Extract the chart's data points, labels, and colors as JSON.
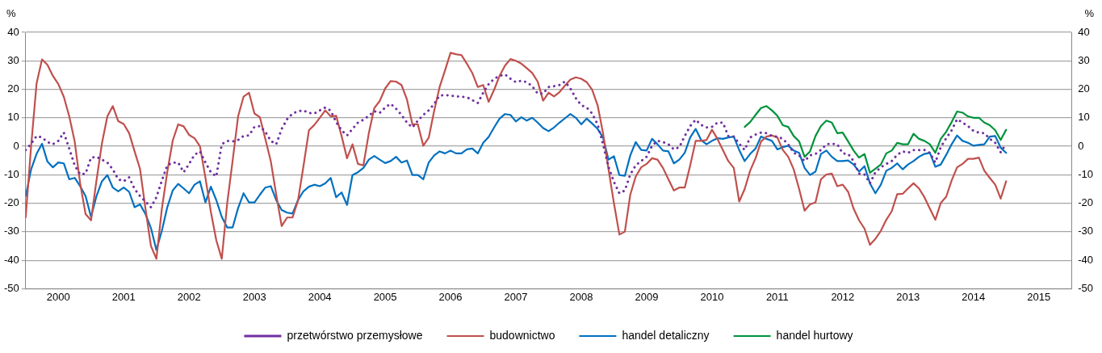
{
  "chart_data": {
    "type": "line",
    "ylabel": "%",
    "y2label": "%",
    "legend": "bottom",
    "grid": "y",
    "marker": "none",
    "x": [
      "2000-01",
      "2000-02",
      "2000-03",
      "2000-04",
      "2000-05",
      "2000-06",
      "2000-07",
      "2000-08",
      "2000-09",
      "2000-10",
      "2000-11",
      "2000-12",
      "2001-01",
      "2001-02",
      "2001-03",
      "2001-04",
      "2001-05",
      "2001-06",
      "2001-07",
      "2001-08",
      "2001-09",
      "2001-10",
      "2001-11",
      "2001-12",
      "2002-01",
      "2002-02",
      "2002-03",
      "2002-04",
      "2002-05",
      "2002-06",
      "2002-07",
      "2002-08",
      "2002-09",
      "2002-10",
      "2002-11",
      "2002-12",
      "2003-01",
      "2003-02",
      "2003-03",
      "2003-04",
      "2003-05",
      "2003-06",
      "2003-07",
      "2003-08",
      "2003-09",
      "2003-10",
      "2003-11",
      "2003-12",
      "2004-01",
      "2004-02",
      "2004-03",
      "2004-04",
      "2004-05",
      "2004-06",
      "2004-07",
      "2004-08",
      "2004-09",
      "2004-10",
      "2004-11",
      "2004-12",
      "2005-01",
      "2005-02",
      "2005-03",
      "2005-04",
      "2005-05",
      "2005-06",
      "2005-07",
      "2005-08",
      "2005-09",
      "2005-10",
      "2005-11",
      "2005-12",
      "2006-01",
      "2006-02",
      "2006-03",
      "2006-04",
      "2006-05",
      "2006-06",
      "2006-07",
      "2006-08",
      "2006-09",
      "2006-10",
      "2006-11",
      "2006-12",
      "2007-01",
      "2007-02",
      "2007-03",
      "2007-04",
      "2007-05",
      "2007-06",
      "2007-07",
      "2007-08",
      "2007-09",
      "2007-10",
      "2007-11",
      "2007-12",
      "2008-01",
      "2008-02",
      "2008-03",
      "2008-04",
      "2008-05",
      "2008-06",
      "2008-07",
      "2008-08",
      "2008-09",
      "2008-10",
      "2008-11",
      "2008-12",
      "2009-01",
      "2009-02",
      "2009-03",
      "2009-04",
      "2009-05",
      "2009-06",
      "2009-07",
      "2009-08",
      "2009-09",
      "2009-10",
      "2009-11",
      "2009-12",
      "2010-01",
      "2010-02",
      "2010-03",
      "2010-04",
      "2010-05",
      "2010-06",
      "2010-07",
      "2010-08",
      "2010-09",
      "2010-10",
      "2010-11",
      "2010-12",
      "2011-01",
      "2011-02",
      "2011-03",
      "2011-04",
      "2011-05",
      "2011-06",
      "2011-07",
      "2011-08",
      "2011-09",
      "2011-10",
      "2011-11",
      "2011-12",
      "2012-01",
      "2012-02",
      "2012-03",
      "2012-04",
      "2012-05",
      "2012-06",
      "2012-07",
      "2012-08",
      "2012-09",
      "2012-10",
      "2012-11",
      "2012-12",
      "2013-01",
      "2013-02",
      "2013-03",
      "2013-04",
      "2013-05",
      "2013-06",
      "2013-07",
      "2013-08",
      "2013-09",
      "2013-10",
      "2013-11",
      "2013-12",
      "2014-01",
      "2014-02",
      "2014-03",
      "2014-04",
      "2014-05",
      "2014-06",
      "2014-07",
      "2014-08",
      "2014-09",
      "2014-10",
      "2014-11",
      "2014-12",
      "2015-01"
    ],
    "xlim": [
      "2000-01",
      "2016-01"
    ],
    "xticks": [
      {
        "value": "2000-07",
        "label": "2000"
      },
      {
        "value": "2001-07",
        "label": "2001"
      },
      {
        "value": "2002-07",
        "label": "2002"
      },
      {
        "value": "2003-07",
        "label": "2003"
      },
      {
        "value": "2004-07",
        "label": "2004"
      },
      {
        "value": "2005-07",
        "label": "2005"
      },
      {
        "value": "2006-07",
        "label": "2006"
      },
      {
        "value": "2007-07",
        "label": "2007"
      },
      {
        "value": "2008-07",
        "label": "2008"
      },
      {
        "value": "2009-07",
        "label": "2009"
      },
      {
        "value": "2010-07",
        "label": "2010"
      },
      {
        "value": "2011-07",
        "label": "2011"
      },
      {
        "value": "2012-07",
        "label": "2012"
      },
      {
        "value": "2013-07",
        "label": "2013"
      },
      {
        "value": "2014-07",
        "label": "2014"
      },
      {
        "value": "2015-07",
        "label": "2015"
      }
    ],
    "ylim": [
      -50,
      40
    ],
    "yticks": [
      -50,
      -40,
      -30,
      -20,
      -10,
      0,
      10,
      20,
      30,
      40
    ],
    "y2lim": [
      -50,
      40
    ],
    "y2ticks": [
      -50,
      -40,
      -30,
      -20,
      -10,
      0,
      10,
      20,
      30,
      40
    ],
    "series": [
      {
        "name": "przetwórstwo przemysłowe",
        "color": "#7030a0",
        "line_style": "dotted",
        "values": [
          -1.3,
          0.9,
          3.6,
          3.1,
          1.5,
          0.7,
          1.9,
          4.8,
          -0.8,
          -6.7,
          -9.9,
          -9.6,
          -4,
          -3.7,
          -4.7,
          -5.7,
          -8.1,
          -11.6,
          -12.3,
          -10.9,
          -15,
          -17.5,
          -19.4,
          -21.4,
          -17.9,
          -12.1,
          -6.7,
          -5.7,
          -5.7,
          -9.1,
          -6.2,
          -3,
          -1.8,
          -5.7,
          -9.1,
          -10.6,
          0.7,
          1.9,
          1.7,
          2.2,
          3.6,
          3.8,
          6.8,
          7.1,
          5.1,
          1.9,
          0.7,
          6.1,
          9.5,
          11.5,
          12.3,
          12.6,
          11.7,
          11.5,
          12.6,
          13.6,
          12.5,
          8.5,
          5.6,
          3.8,
          6.1,
          8.3,
          9.3,
          10.7,
          12.3,
          11.7,
          13.6,
          14.9,
          13.2,
          11,
          8.3,
          6.6,
          9,
          11,
          12.6,
          14.9,
          17.8,
          18,
          17.8,
          17.5,
          17.4,
          17.2,
          16.2,
          15.2,
          18.8,
          21.8,
          23.7,
          24.7,
          25.2,
          23.7,
          22.5,
          23,
          22.5,
          21.1,
          18.5,
          18.5,
          20.8,
          21.1,
          21.5,
          22.7,
          20.3,
          16.9,
          14.4,
          13.6,
          11.5,
          7.7,
          0.7,
          -7.2,
          -12.5,
          -16.5,
          -15.5,
          -9.9,
          -6.7,
          -5.2,
          -3.7,
          0.2,
          1.9,
          1.5,
          0.7,
          -1.1,
          -0.3,
          3.6,
          7.1,
          9.3,
          7.5,
          6.6,
          6.8,
          8.3,
          8.3,
          3.6,
          3.4,
          0.9,
          -1.3,
          3.1,
          4.1,
          4.8,
          4.6,
          3.6,
          3.4,
          2.6,
          0.7,
          -2.3,
          -3.2,
          -5.2,
          -3.2,
          -2.7,
          -1.3,
          0.7,
          0.9,
          0.7,
          -2.5,
          -2.7,
          -5.2,
          -9.6,
          -9.9,
          -13,
          -9.1,
          -7.4,
          -6.2,
          -5.2,
          -3,
          -1.8,
          -2.3,
          -1.3,
          -1.3,
          -1.3,
          -2.3,
          -5.7,
          -0.3,
          2.8,
          5.6,
          9.5,
          8.3,
          7.1,
          5.4,
          4.8,
          4.6,
          2.6,
          1.2,
          -2.1,
          0.9
        ]
      },
      {
        "name": "budownictwo",
        "color": "#c0504d",
        "values": [
          -25,
          0,
          22,
          30.5,
          28.6,
          24.7,
          21.8,
          17.4,
          10.5,
          1.7,
          -13,
          -23.8,
          -26,
          -12,
          1,
          10.5,
          14.1,
          8.8,
          7.8,
          4.6,
          -1.8,
          -8,
          -22,
          -35,
          -39.5,
          -22,
          -9,
          2,
          7.7,
          7,
          4,
          2.8,
          0,
          -11,
          -23,
          -33,
          -39.5,
          -20,
          -5,
          10.5,
          17.4,
          18.8,
          11.5,
          10.2,
          2.6,
          -5.2,
          -17,
          -28,
          -25,
          -25,
          -19,
          -7,
          5.6,
          7.5,
          10,
          12.6,
          10.5,
          10.7,
          3.6,
          -4.2,
          0.7,
          -6.2,
          -6.7,
          4.6,
          13.4,
          15.9,
          20.3,
          22.9,
          22.7,
          21.5,
          16.4,
          7.7,
          7.7,
          0.2,
          3,
          12.5,
          20.8,
          26.7,
          32.8,
          32.3,
          32,
          29,
          25.7,
          20.8,
          21.5,
          15.6,
          19.8,
          24.7,
          28.3,
          30.6,
          30,
          29,
          27.4,
          25.7,
          22.7,
          16,
          18.8,
          17.5,
          19,
          21.3,
          23.4,
          24.2,
          23.7,
          22.5,
          19.8,
          14.4,
          4.6,
          -8,
          -20,
          -31,
          -30,
          -17,
          -10.6,
          -7.4,
          -6.2,
          -4.2,
          -4.7,
          -7.6,
          -11.6,
          -15.5,
          -14.5,
          -14.5,
          -6.7,
          1.9,
          1.9,
          2.2,
          5.8,
          2.6,
          -1.3,
          -5.2,
          -7.6,
          -19.4,
          -15,
          -8.6,
          -4.2,
          1.7,
          3.4,
          3.8,
          3.1,
          -1.3,
          -3.7,
          -8.1,
          -15,
          -22.6,
          -20.4,
          -19.7,
          -11.6,
          -9.9,
          -9.6,
          -14,
          -13.5,
          -16,
          -21.9,
          -26,
          -28.9,
          -34.6,
          -32.5,
          -29.7,
          -25.8,
          -22.8,
          -16.8,
          -16.7,
          -14.8,
          -13,
          -14.8,
          -17.9,
          -21.9,
          -25.8,
          -19.9,
          -17.7,
          -12,
          -7.4,
          -6.2,
          -4.4,
          -4.4,
          -4,
          -8.6,
          -11.1,
          -13.5,
          -18.4,
          -12.3
        ]
      },
      {
        "name": "handel detaliczny",
        "color": "#0070c0",
        "values": [
          -17.5,
          -8.1,
          -2.7,
          0.9,
          -5.4,
          -7.4,
          -5.7,
          -6,
          -11.6,
          -11.1,
          -14,
          -17.5,
          -24.8,
          -17.5,
          -12.3,
          -10.1,
          -14.5,
          -15.8,
          -14.5,
          -16,
          -21.4,
          -20.4,
          -23.8,
          -28.7,
          -36.4,
          -29.7,
          -21.4,
          -15.5,
          -13.2,
          -14.8,
          -16.5,
          -13.5,
          -12.3,
          -19.7,
          -14.2,
          -18.9,
          -24.8,
          -28.5,
          -28.5,
          -21.7,
          -16.5,
          -19.7,
          -19.7,
          -17,
          -14.5,
          -14,
          -18.9,
          -22.4,
          -23.3,
          -23.6,
          -18.9,
          -15.8,
          -14.2,
          -13.5,
          -14,
          -13,
          -11.1,
          -17.9,
          -16.2,
          -20.6,
          -10.1,
          -9.1,
          -7.6,
          -4.7,
          -3.4,
          -4.7,
          -5.9,
          -5.2,
          -3.7,
          -5.7,
          -5,
          -10.1,
          -10.1,
          -11.6,
          -5.7,
          -3.2,
          -1.8,
          -2.5,
          -1.5,
          -2.5,
          -2.5,
          -1.1,
          -0.8,
          -2.5,
          1.2,
          3.3,
          6.6,
          9.7,
          11.3,
          11,
          8.7,
          10.2,
          9,
          10,
          8.3,
          6.4,
          5.3,
          6.6,
          8.3,
          9.8,
          11.3,
          10,
          7.7,
          9.7,
          8,
          6.1,
          3.1,
          -4.7,
          -3.5,
          -10.1,
          -10.4,
          -3.2,
          1.5,
          -1.3,
          -1.5,
          2.6,
          0.7,
          -1.5,
          -1.8,
          -6,
          -4.7,
          -2.3,
          3.1,
          6.1,
          2.2,
          0.7,
          1.9,
          2.8,
          2.6,
          3.1,
          3.4,
          -1.3,
          -5.2,
          -2.7,
          -0.8,
          3.4,
          2.6,
          1.9,
          -1.1,
          -0.3,
          0.2,
          -1.5,
          -2.3,
          -7.6,
          -10.1,
          -8.9,
          -2.7,
          -1.5,
          -3.7,
          -5.2,
          -5.2,
          -5,
          -6.4,
          -8.9,
          -7,
          -13,
          -16.5,
          -13.5,
          -8.6,
          -7.6,
          -6,
          -8.1,
          -6.4,
          -5.2,
          -3.7,
          -2.7,
          -2.3,
          -7.2,
          -6.4,
          -3,
          0.7,
          3.8,
          1.9,
          1.2,
          0.2,
          0.5,
          0.7,
          3.4,
          3.6,
          -0.5,
          -2.3
        ]
      },
      {
        "name": "handel hurtowy",
        "color": "#00933b",
        "values": [
          null,
          null,
          null,
          null,
          null,
          null,
          null,
          null,
          null,
          null,
          null,
          null,
          null,
          null,
          null,
          null,
          null,
          null,
          null,
          null,
          null,
          null,
          null,
          null,
          null,
          null,
          null,
          null,
          null,
          null,
          null,
          null,
          null,
          null,
          null,
          null,
          null,
          null,
          null,
          null,
          null,
          null,
          null,
          null,
          null,
          null,
          null,
          null,
          null,
          null,
          null,
          null,
          null,
          null,
          null,
          null,
          null,
          null,
          null,
          null,
          null,
          null,
          null,
          null,
          null,
          null,
          null,
          null,
          null,
          null,
          null,
          null,
          null,
          null,
          null,
          null,
          null,
          null,
          null,
          null,
          null,
          null,
          null,
          null,
          null,
          null,
          null,
          null,
          null,
          null,
          null,
          null,
          null,
          null,
          null,
          null,
          null,
          null,
          null,
          null,
          null,
          null,
          null,
          null,
          null,
          null,
          null,
          null,
          null,
          null,
          null,
          null,
          null,
          null,
          null,
          null,
          null,
          null,
          null,
          null,
          null,
          null,
          null,
          null,
          null,
          null,
          null,
          null,
          null,
          null,
          null,
          null,
          6.8,
          8.5,
          11,
          13.4,
          14.1,
          12.6,
          10.7,
          7.4,
          6.8,
          3.6,
          1.7,
          -3.7,
          -1.8,
          3.6,
          7.1,
          9,
          8.3,
          4.6,
          4.8,
          1.7,
          -1.5,
          -4,
          -2.7,
          -9.3,
          -7.9,
          -6.4,
          -2.5,
          -1.5,
          1.2,
          0.7,
          0.7,
          4.4,
          2.6,
          1.9,
          0.7,
          -2.3,
          2.6,
          5.1,
          8.5,
          12.2,
          11.8,
          10.5,
          10,
          10,
          8.3,
          7.4,
          5.6,
          2.2,
          5.8
        ]
      }
    ]
  }
}
